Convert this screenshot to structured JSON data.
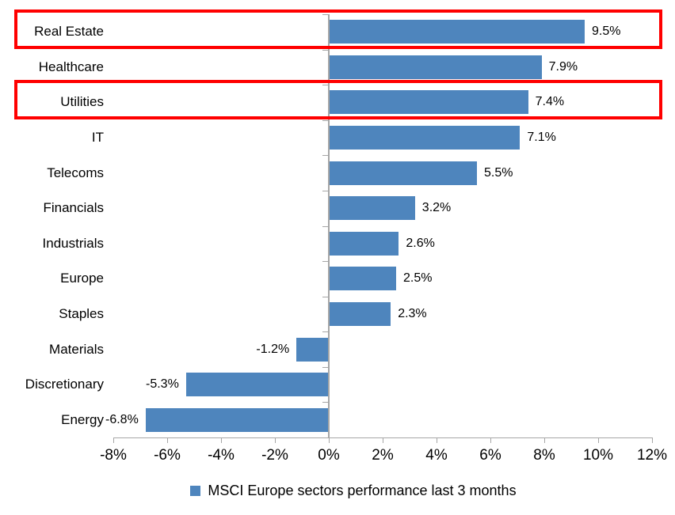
{
  "chart_data": {
    "type": "bar",
    "orientation": "horizontal",
    "title": "",
    "categories": [
      "Real Estate",
      "Healthcare",
      "Utilities",
      "IT",
      "Telecoms",
      "Financials",
      "Industrials",
      "Europe",
      "Staples",
      "Materials",
      "Discretionary",
      "Energy"
    ],
    "values": [
      9.5,
      7.9,
      7.4,
      7.1,
      5.5,
      3.2,
      2.6,
      2.5,
      2.3,
      -1.2,
      -5.3,
      -6.8
    ],
    "data_labels": [
      "9.5%",
      "7.9%",
      "7.4%",
      "7.1%",
      "5.5%",
      "3.2%",
      "2.6%",
      "2.5%",
      "2.3%",
      "-1.2%",
      "-5.3%",
      "-6.8%"
    ],
    "x_tick_labels": [
      "-8%",
      "-6%",
      "-4%",
      "-2%",
      "0%",
      "2%",
      "4%",
      "6%",
      "8%",
      "10%",
      "12%"
    ],
    "xlim": [
      -8,
      12
    ],
    "x_tick_step": 2,
    "grid": false,
    "legend": "MSCI Europe sectors performance last 3 months",
    "legend_position": "bottom",
    "highlighted_categories": [
      "Real Estate",
      "Utilities"
    ],
    "colors": {
      "bar": "#4e85bd",
      "axis": "#a6a6a6",
      "highlight_border": "#ff0000",
      "text": "#000000",
      "background": "#ffffff"
    }
  }
}
